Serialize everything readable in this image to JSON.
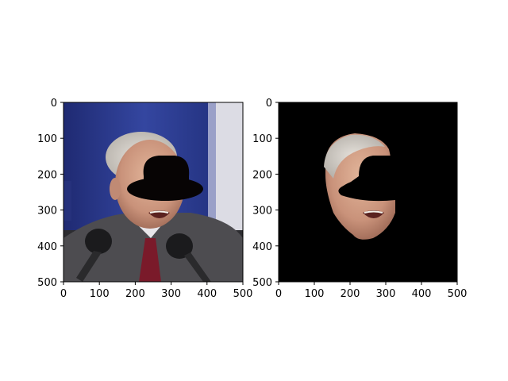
{
  "figure": {
    "background": "#ffffff"
  },
  "panels": [
    {
      "name": "original-photo-with-hat-mask",
      "content": "photo of an older man speaking at microphones, blue curtain background, black bowler-hat shaped occlusion over upper face",
      "x_ticks": [
        "0",
        "100",
        "200",
        "300",
        "400",
        "500"
      ],
      "y_ticks": [
        "0",
        "100",
        "200",
        "300",
        "400",
        "500"
      ]
    },
    {
      "name": "segmented-face-on-black",
      "content": "face region segmented out on black background, with a black occluded area over the eyes",
      "x_ticks": [
        "0",
        "100",
        "200",
        "300",
        "400",
        "500"
      ],
      "y_ticks": [
        "0",
        "100",
        "200",
        "300",
        "400",
        "500"
      ]
    }
  ],
  "colors": {
    "curtain_blue": "#2f3f8f",
    "curtain_dark": "#1f2a6a",
    "skin": "#d6a58a",
    "suit": "#4a4a4e",
    "tie": "#7a1a2a",
    "mask": "#070404",
    "background_black": "#000000"
  }
}
